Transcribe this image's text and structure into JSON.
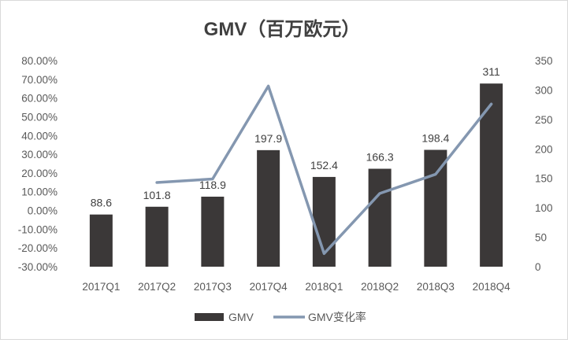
{
  "chart_data": {
    "type": "bar",
    "title": "GMV（百万欧元）",
    "categories": [
      "2017Q1",
      "2017Q2",
      "2017Q3",
      "2017Q4",
      "2018Q1",
      "2018Q2",
      "2018Q3",
      "2018Q4"
    ],
    "series": [
      {
        "name": "GMV",
        "type": "bar",
        "axis": "right",
        "values": [
          88.6,
          101.8,
          118.9,
          197.9,
          152.4,
          166.3,
          198.4,
          311
        ],
        "labels": [
          "88.6",
          "101.8",
          "118.9",
          "197.9",
          "152.4",
          "166.3",
          "198.4",
          "311"
        ],
        "color": "#3b3838"
      },
      {
        "name": "GMV变化率",
        "type": "line",
        "axis": "left",
        "values": [
          null,
          0.149,
          0.168,
          0.664,
          -0.23,
          0.091,
          0.193,
          0.568
        ],
        "color": "#8497b0"
      }
    ],
    "left_axis": {
      "min": -0.3,
      "max": 0.8,
      "ticks": [
        -0.3,
        -0.2,
        -0.1,
        0.0,
        0.1,
        0.2,
        0.3,
        0.4,
        0.5,
        0.6,
        0.7,
        0.8
      ],
      "tick_labels": [
        "-30.00%",
        "-20.00%",
        "-10.00%",
        "0.00%",
        "10.00%",
        "20.00%",
        "30.00%",
        "40.00%",
        "50.00%",
        "60.00%",
        "70.00%",
        "80.00%"
      ]
    },
    "right_axis": {
      "min": 0,
      "max": 350,
      "ticks": [
        0,
        50,
        100,
        150,
        200,
        250,
        300,
        350
      ],
      "tick_labels": [
        "0",
        "50",
        "100",
        "150",
        "200",
        "250",
        "300",
        "350"
      ]
    },
    "grid": false,
    "legend_position": "bottom"
  }
}
